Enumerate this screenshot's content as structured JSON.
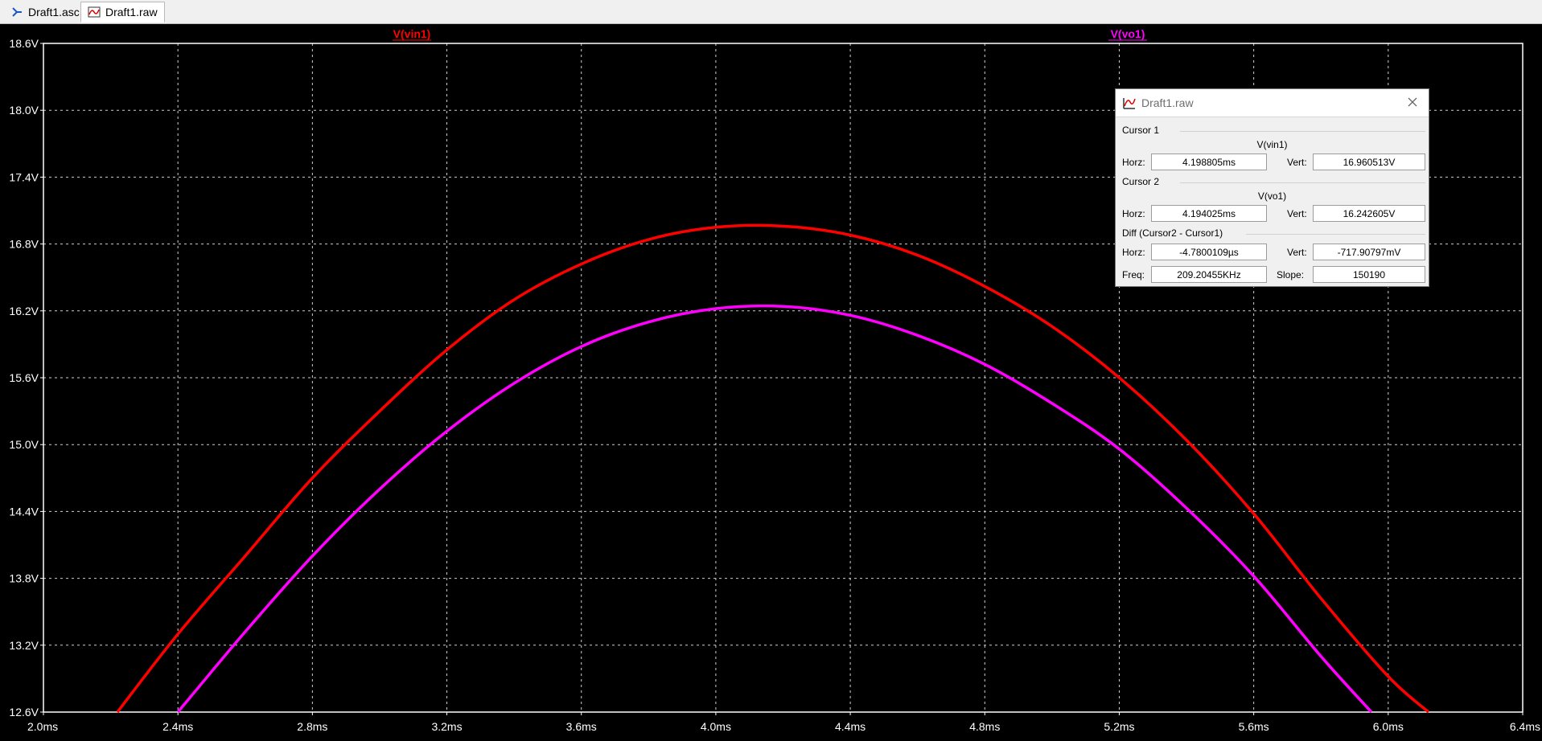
{
  "tabs": [
    {
      "label": "Draft1.asc",
      "icon": "schematic-icon",
      "active": false
    },
    {
      "label": "Draft1.raw",
      "icon": "waveform-icon",
      "active": true
    }
  ],
  "plot": {
    "trace_labels": [
      {
        "label": "V(vin1)",
        "color": "#ff0000"
      },
      {
        "label": "V(vo1)",
        "color": "#ff00ff"
      }
    ]
  },
  "chart_data": {
    "type": "line",
    "xlabel": "",
    "ylabel": "",
    "xlim": [
      0.002,
      0.0064
    ],
    "ylim": [
      12.6,
      18.6
    ],
    "x_ticks": [
      "2.0ms",
      "2.4ms",
      "2.8ms",
      "3.2ms",
      "3.6ms",
      "4.0ms",
      "4.4ms",
      "4.8ms",
      "5.2ms",
      "5.6ms",
      "6.0ms",
      "6.4ms"
    ],
    "y_ticks": [
      "12.6V",
      "13.2V",
      "13.8V",
      "14.4V",
      "15.0V",
      "15.6V",
      "16.2V",
      "16.8V",
      "17.4V",
      "18.0V",
      "18.6V"
    ],
    "grid": true,
    "background": "#000000",
    "series": [
      {
        "name": "V(vin1)",
        "color": "#ff0000",
        "x": [
          0.00222,
          0.0024,
          0.0026,
          0.0028,
          0.003,
          0.0032,
          0.0034,
          0.0036,
          0.0038,
          0.004,
          0.0042,
          0.0044,
          0.0046,
          0.0048,
          0.005,
          0.0052,
          0.0054,
          0.0056,
          0.0058,
          0.006,
          0.00612
        ],
        "y": [
          12.6,
          13.3,
          14.0,
          14.7,
          15.3,
          15.85,
          16.3,
          16.62,
          16.84,
          16.95,
          16.96,
          16.88,
          16.7,
          16.42,
          16.06,
          15.6,
          15.04,
          14.38,
          13.62,
          12.92,
          12.6
        ]
      },
      {
        "name": "V(vo1)",
        "color": "#ff00ff",
        "x": [
          0.0024,
          0.0026,
          0.0028,
          0.003,
          0.0032,
          0.0034,
          0.0036,
          0.0038,
          0.004,
          0.0042,
          0.0044,
          0.0046,
          0.0048,
          0.005,
          0.0052,
          0.0054,
          0.0056,
          0.0058,
          0.00595
        ],
        "y": [
          12.6,
          13.32,
          14.0,
          14.6,
          15.12,
          15.55,
          15.88,
          16.1,
          16.22,
          16.24,
          16.16,
          15.98,
          15.72,
          15.37,
          14.96,
          14.43,
          13.82,
          13.1,
          12.6
        ]
      }
    ]
  },
  "dialog": {
    "title": "Draft1.raw",
    "cursor1": {
      "group": "Cursor 1",
      "trace": "V(vin1)",
      "horz_label": "Horz:",
      "horz": "4.198805ms",
      "vert_label": "Vert:",
      "vert": "16.960513V"
    },
    "cursor2": {
      "group": "Cursor 2",
      "trace": "V(vo1)",
      "horz_label": "Horz:",
      "horz": "4.194025ms",
      "vert_label": "Vert:",
      "vert": "16.242605V"
    },
    "diff": {
      "group": "Diff (Cursor2 - Cursor1)",
      "horz_label": "Horz:",
      "horz": "-4.7800109µs",
      "vert_label": "Vert:",
      "vert": "-717.90797mV",
      "freq_label": "Freq:",
      "freq": "209.20455KHz",
      "slope_label": "Slope:",
      "slope": "150190"
    }
  }
}
